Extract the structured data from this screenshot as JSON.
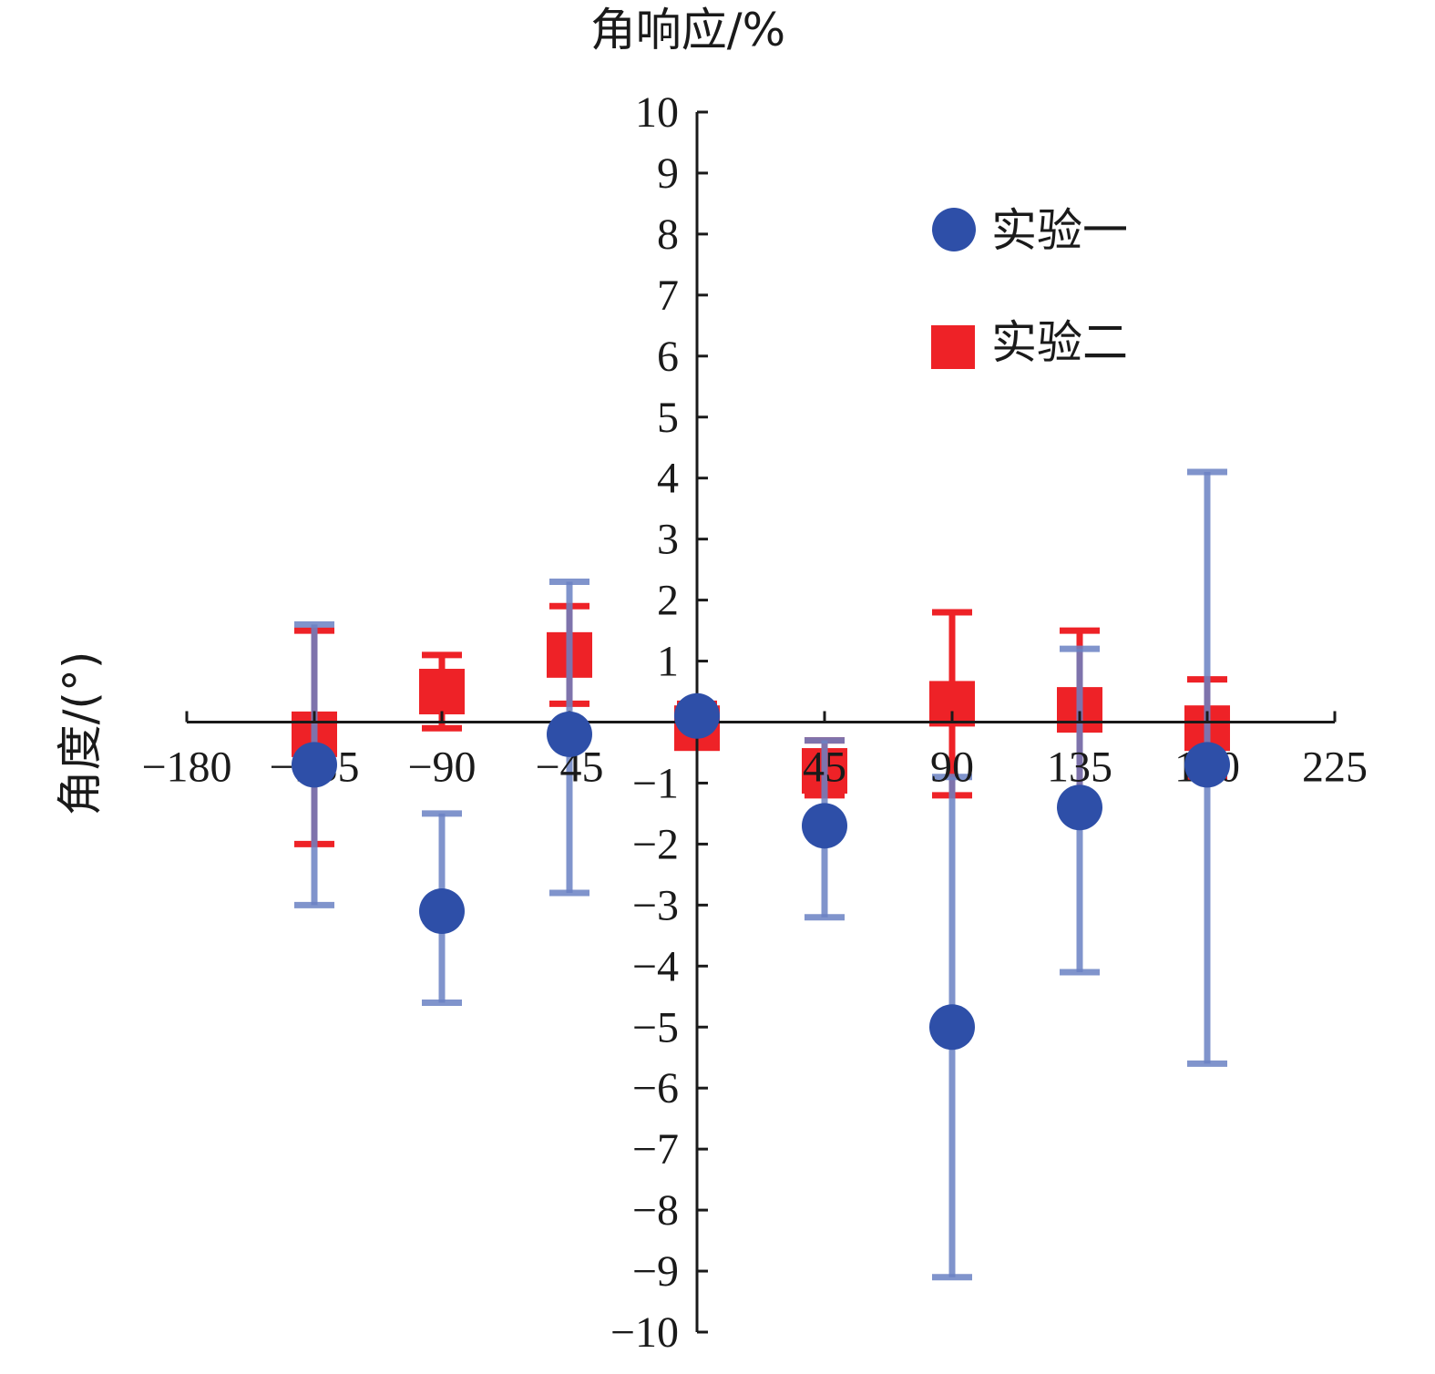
{
  "chart_data": {
    "type": "scatter",
    "title": "",
    "xlabel": "角度/(°)",
    "ylabel": "角响应/%",
    "xlim": [
      -180,
      225
    ],
    "ylim": [
      -10,
      10
    ],
    "x_ticks": [
      -180,
      -135,
      -90,
      -45,
      0,
      45,
      90,
      135,
      180,
      225
    ],
    "x_tick_labels": [
      "−180",
      "−135",
      "−90",
      "−45",
      "",
      "45",
      "90",
      "135",
      "180",
      "225"
    ],
    "y_ticks": [
      -10,
      -9,
      -8,
      -7,
      -6,
      -5,
      -4,
      -3,
      -2,
      -1,
      0,
      1,
      2,
      3,
      4,
      5,
      6,
      7,
      8,
      9,
      10
    ],
    "y_tick_labels": [
      "−10",
      "−9",
      "−8",
      "−7",
      "−6",
      "−5",
      "−4",
      "−3",
      "−2",
      "−1",
      "",
      "1",
      "2",
      "3",
      "4",
      "5",
      "6",
      "7",
      "8",
      "9",
      "10"
    ],
    "grid": false,
    "legend_position": "top-right",
    "series": [
      {
        "name": "实验二",
        "marker": "square",
        "color": "#ee2227",
        "error_color": "#ee2227",
        "x": [
          -135,
          -90,
          -45,
          0,
          45,
          90,
          135,
          180
        ],
        "y": [
          -0.2,
          0.5,
          1.1,
          -0.1,
          -0.8,
          0.3,
          0.2,
          -0.1
        ],
        "err_low": [
          -2.0,
          -0.1,
          0.3,
          -0.3,
          -1.2,
          -1.2,
          -1.3,
          -0.9
        ],
        "err_high": [
          1.5,
          1.1,
          1.9,
          0.3,
          -0.3,
          1.8,
          1.5,
          0.7
        ]
      },
      {
        "name": "实验一",
        "marker": "circle",
        "color": "#2e4fa8",
        "error_color": "#6b82c4",
        "x": [
          -135,
          -90,
          -45,
          0,
          45,
          90,
          135,
          180
        ],
        "y": [
          -0.7,
          -3.1,
          -0.2,
          0.1,
          -1.7,
          -5.0,
          -1.4,
          -0.7
        ],
        "err_low": [
          -3.0,
          -4.6,
          -2.8,
          0.1,
          -3.2,
          -9.1,
          -4.1,
          -5.6
        ],
        "err_high": [
          1.6,
          -1.5,
          2.3,
          0.1,
          -0.3,
          -0.9,
          1.2,
          4.1
        ]
      }
    ]
  }
}
